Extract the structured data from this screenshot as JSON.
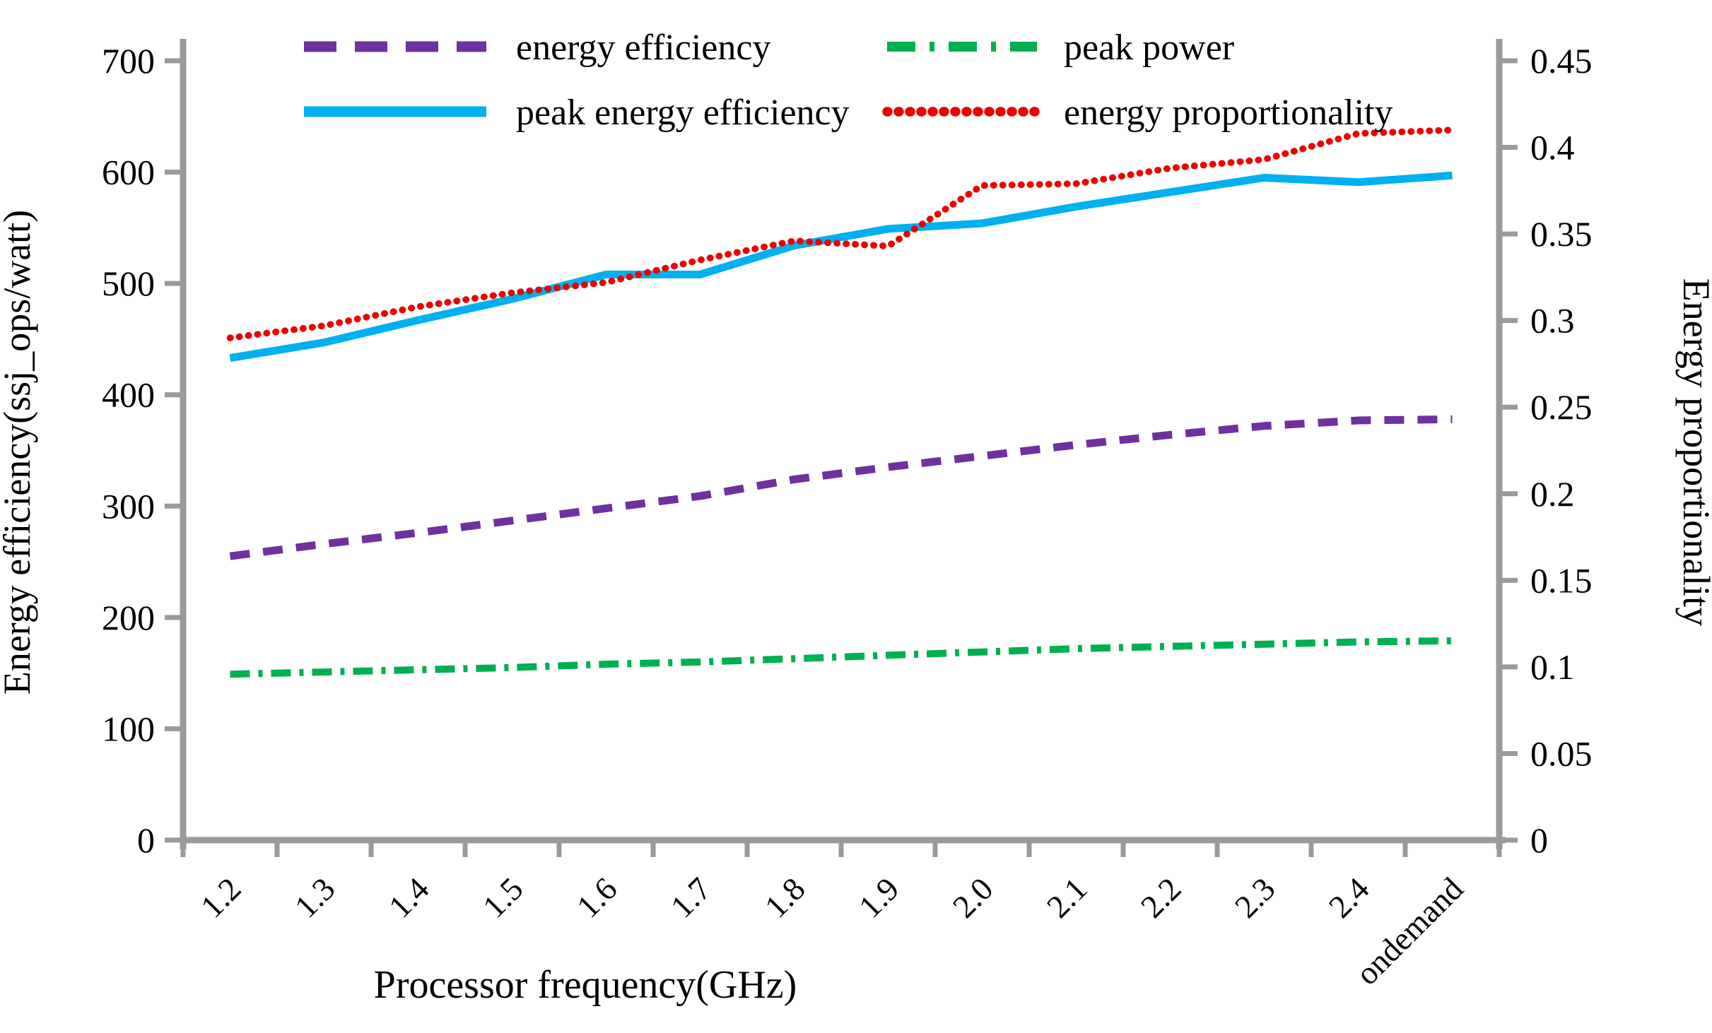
{
  "chart_data": {
    "type": "line",
    "title": "",
    "xlabel": "Processor frequency(GHz)",
    "ylabel_left": "Energy efficiency(ssj_ops/watt)",
    "ylabel_right": "Energy proportionality",
    "grid": false,
    "legend_position": "top, two columns inside plot",
    "categories": [
      "1.2",
      "1.3",
      "1.4",
      "1.5",
      "1.6",
      "1.7",
      "1.8",
      "1.9",
      "2.0",
      "2.1",
      "2.2",
      "2.3",
      "2.4",
      "ondemand"
    ],
    "left_axis": {
      "min": 0,
      "max": 700,
      "step": 100,
      "tick_labels": [
        "700",
        "600",
        "500",
        "400",
        "300",
        "200",
        "100",
        "0"
      ]
    },
    "right_axis": {
      "min": 0,
      "max": 0.45,
      "step": 0.05,
      "tick_labels": [
        "0.45",
        "0.4",
        "0.35",
        "0.3",
        "0.25",
        "0.2",
        "0.15",
        "0.1",
        "0.05",
        "0"
      ]
    },
    "series": [
      {
        "name": "energy efficiency",
        "axis": "left",
        "color": "#7030A0",
        "style": "dashed",
        "values": [
          255,
          266,
          276,
          287,
          298,
          309,
          324,
          335,
          345,
          355,
          364,
          372,
          377,
          378
        ]
      },
      {
        "name": "peak energy efficiency",
        "axis": "left",
        "color": "#00B0F0",
        "style": "solid",
        "values": [
          433,
          447,
          467,
          486,
          508,
          508,
          534,
          549,
          554,
          569,
          582,
          595,
          591,
          597
        ]
      },
      {
        "name": "peak power",
        "axis": "left",
        "color": "#00B050",
        "style": "dash-dot",
        "values": [
          149,
          151,
          153,
          155,
          158,
          160,
          163,
          166,
          169,
          172,
          174,
          176,
          178,
          179
        ]
      },
      {
        "name": "energy proportionality",
        "axis": "right",
        "color": "#EE0000",
        "style": "dotted",
        "values": [
          0.29,
          0.297,
          0.308,
          0.316,
          0.322,
          0.335,
          0.346,
          0.343,
          0.378,
          0.379,
          0.388,
          0.393,
          0.408,
          0.41
        ]
      }
    ],
    "legend_items": [
      {
        "label": "energy efficiency",
        "series": 0,
        "col": 0,
        "row": 0
      },
      {
        "label": "peak energy efficiency",
        "series": 1,
        "col": 0,
        "row": 1
      },
      {
        "label": "peak power",
        "series": 2,
        "col": 1,
        "row": 0
      },
      {
        "label": "energy proportionality",
        "series": 3,
        "col": 1,
        "row": 1
      }
    ],
    "axis_color": "#9a9a9a"
  }
}
